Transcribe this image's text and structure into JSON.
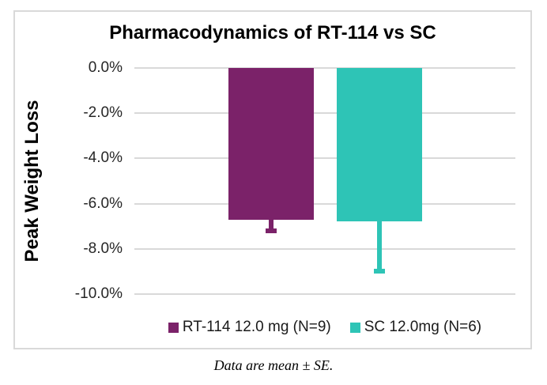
{
  "colors": {
    "rt114_purple": "#7b2269",
    "sc_teal": "#2ec4b6",
    "gridline": "#d9d9d9",
    "frame_border": "#d9d9d9",
    "tick_text": "#262626",
    "title_text": "#000000"
  },
  "chart_data": {
    "type": "bar",
    "title": "Pharmacodynamics of RT-114 vs SC",
    "xlabel": "",
    "ylabel": "Peak Weight Loss",
    "ylim": [
      -10,
      0
    ],
    "ytick_step": 2,
    "ytick_labels": [
      "0.0%",
      "-2.0%",
      "-4.0%",
      "-6.0%",
      "-8.0%",
      "-10.0%"
    ],
    "grid": true,
    "legend_position": "bottom",
    "series": [
      {
        "name": "RT-114 12.0 mg (N=9)",
        "value": -6.7,
        "error_se": 0.6,
        "error_direction": "minus",
        "color": "#7b2269"
      },
      {
        "name": "SC 12.0mg (N=6)",
        "value": -6.8,
        "error_se": 2.3,
        "error_direction": "minus",
        "color": "#2ec4b6"
      }
    ],
    "annotation": "Data are mean ± SE."
  }
}
